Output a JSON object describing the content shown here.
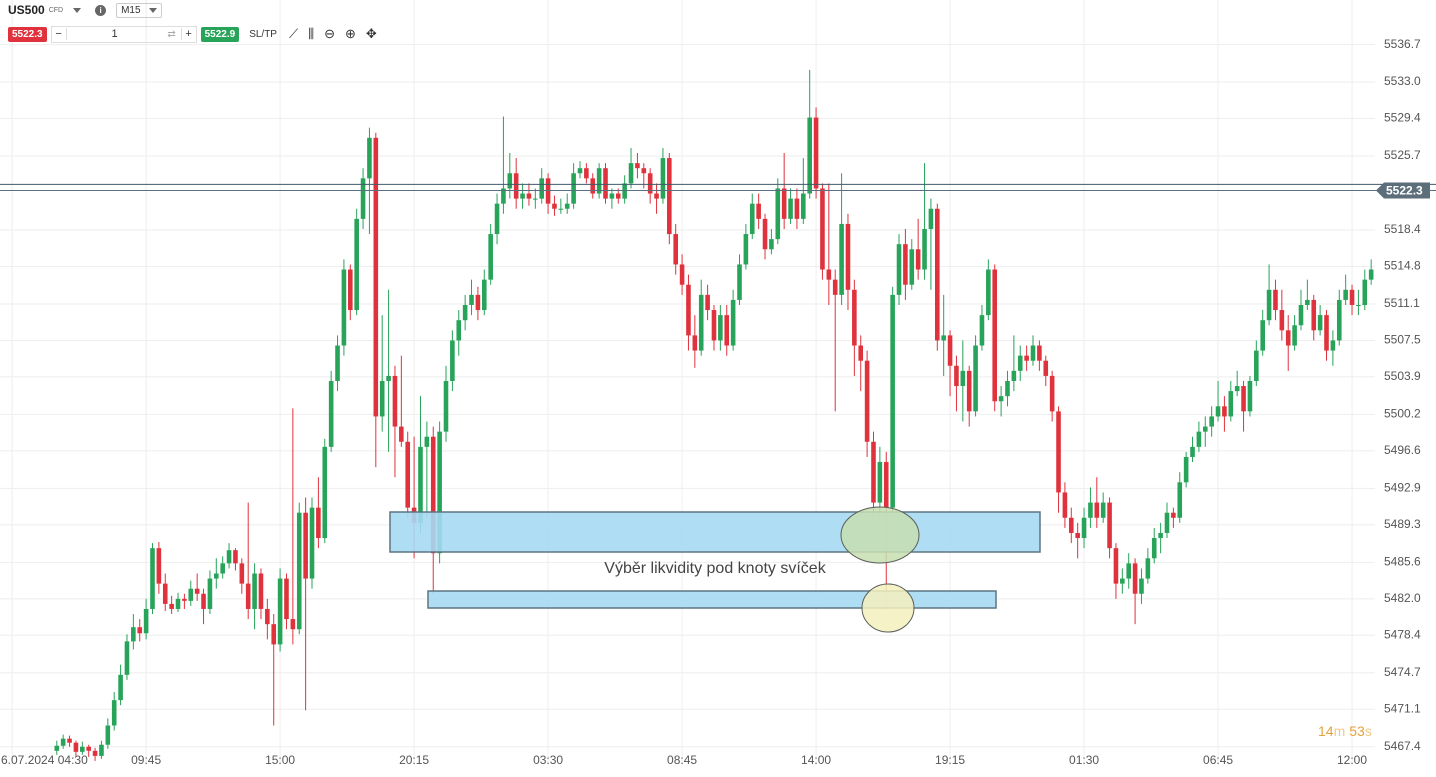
{
  "toolbar": {
    "symbol": "US500",
    "symbol_type": "CFD",
    "timeframe": "M15",
    "bid": 5522.3,
    "quantity": "1",
    "ask": 5522.9,
    "sltp": "SL/TP"
  },
  "countdown": {
    "minutes": "14",
    "minutes_unit": "m",
    "seconds": "53",
    "seconds_unit": "s"
  },
  "chart_data": {
    "type": "candlestick",
    "annotation": "Výběr likvidity pod knoty svíček",
    "up_color": "#27a35a",
    "down_color": "#e0323c",
    "grid": true,
    "price_lines": [
      {
        "name": "ask",
        "value": 5522.9,
        "color": "#3f5a6a"
      },
      {
        "name": "bid",
        "value": 5522.3,
        "color": "#5a6f7d"
      }
    ],
    "xlim": [
      -8.9,
      206.6
    ],
    "xticks": [
      {
        "value": -7,
        "label": "6.07.2024 04:30"
      },
      {
        "value": 14,
        "label": "09:45"
      },
      {
        "value": 35,
        "label": "15:00"
      },
      {
        "value": 56,
        "label": "20:15"
      },
      {
        "value": 77,
        "label": "03:30"
      },
      {
        "value": 98,
        "label": "08:45"
      },
      {
        "value": 119,
        "label": "14:00"
      },
      {
        "value": 140,
        "label": "19:15"
      },
      {
        "value": 161,
        "label": "01:30"
      },
      {
        "value": 182,
        "label": "06:45"
      },
      {
        "value": 203,
        "label": "12:00"
      }
    ],
    "ylim": [
      5465.6,
      5541.1
    ],
    "yticks": [
      5536.7,
      {
        "value": 5533.0,
        "label": "5533.0"
      },
      5529.4,
      5525.7,
      5518.4,
      5514.8,
      5511.1,
      5507.5,
      5503.9,
      5500.2,
      5496.6,
      5492.9,
      5489.3,
      5485.6,
      {
        "value": 5482.0,
        "label": "5482.0"
      },
      5478.4,
      5474.7,
      5471.1,
      5467.4
    ],
    "candles": [
      [
        5467.0,
        5468.0,
        5466.6,
        5467.5
      ],
      [
        5467.5,
        5468.6,
        5467.2,
        5468.2
      ],
      [
        5468.2,
        5468.5,
        5467.4,
        5467.8
      ],
      [
        5467.8,
        5468.0,
        5466.5,
        5466.9
      ],
      [
        5466.9,
        5467.9,
        5466.6,
        5467.4
      ],
      [
        5467.4,
        5467.6,
        5466.4,
        5467.0
      ],
      [
        5467.0,
        5467.3,
        5466.0,
        5466.5
      ],
      [
        5466.5,
        5468.0,
        5466.2,
        5467.6
      ],
      [
        5467.6,
        5470.2,
        5467.2,
        5469.5
      ],
      [
        5469.5,
        5472.8,
        5469.0,
        5472.0
      ],
      [
        5472.0,
        5475.5,
        5471.5,
        5474.5
      ],
      [
        5474.5,
        5478.5,
        5474.0,
        5477.8
      ],
      [
        5477.8,
        5480.5,
        5477.0,
        5479.2
      ],
      [
        5479.2,
        5480.0,
        5477.8,
        5478.6
      ],
      [
        5478.6,
        5482.0,
        5478.0,
        5481.0
      ],
      [
        5481.0,
        5487.5,
        5480.5,
        5487.0
      ],
      [
        5487.0,
        5487.6,
        5482.5,
        5483.5
      ],
      [
        5483.5,
        5484.5,
        5480.8,
        5481.5
      ],
      [
        5481.5,
        5482.3,
        5480.5,
        5481.0
      ],
      [
        5481.0,
        5482.6,
        5480.7,
        5482.0
      ],
      [
        5482.0,
        5482.5,
        5481.0,
        5481.8
      ],
      [
        5481.8,
        5483.8,
        5481.3,
        5483.0
      ],
      [
        5483.0,
        5484.5,
        5481.8,
        5482.5
      ],
      [
        5482.5,
        5483.0,
        5479.5,
        5481.0
      ],
      [
        5481.0,
        5484.8,
        5480.5,
        5484.0
      ],
      [
        5484.0,
        5486.0,
        5483.0,
        5484.5
      ],
      [
        5484.5,
        5486.2,
        5484.0,
        5485.5
      ],
      [
        5485.5,
        5487.5,
        5485.0,
        5486.8
      ],
      [
        5486.8,
        5487.0,
        5484.8,
        5485.5
      ],
      [
        5485.5,
        5486.0,
        5482.5,
        5483.5
      ],
      [
        5483.5,
        5491.5,
        5480.0,
        5481.0
      ],
      [
        5481.0,
        5485.5,
        5479.0,
        5484.5
      ],
      [
        5484.5,
        5485.0,
        5480.0,
        5481.0
      ],
      [
        5481.0,
        5482.0,
        5478.0,
        5479.5
      ],
      [
        5479.5,
        5480.5,
        5469.5,
        5477.5
      ],
      [
        5477.5,
        5485.0,
        5476.8,
        5484.0
      ],
      [
        5484.0,
        5484.5,
        5479.0,
        5480.0
      ],
      [
        5480.0,
        5500.8,
        5477.5,
        5479.0
      ],
      [
        5479.0,
        5491.5,
        5478.5,
        5490.5
      ],
      [
        5490.5,
        5492.0,
        5471.0,
        5484.0
      ],
      [
        5484.0,
        5492.0,
        5483.0,
        5491.0
      ],
      [
        5491.0,
        5494.0,
        5487.0,
        5488.0
      ],
      [
        5488.0,
        5497.8,
        5487.5,
        5497.0
      ],
      [
        5497.0,
        5504.5,
        5496.5,
        5503.5
      ],
      [
        5503.5,
        5508.0,
        5502.5,
        5507.0
      ],
      [
        5507.0,
        5515.5,
        5506.0,
        5514.5
      ],
      [
        5514.5,
        5515.0,
        5509.5,
        5510.5
      ],
      [
        5510.5,
        5520.5,
        5510.0,
        5519.5
      ],
      [
        5519.5,
        5524.5,
        5518.5,
        5523.5
      ],
      [
        5523.5,
        5528.5,
        5518.0,
        5527.5
      ],
      [
        5527.5,
        5528.0,
        5495.0,
        5500.0
      ],
      [
        5500.0,
        5510.0,
        5498.5,
        5503.5
      ],
      [
        5503.5,
        5512.5,
        5496.5,
        5504.0
      ],
      [
        5504.0,
        5505.0,
        5494.0,
        5499.0
      ],
      [
        5499.0,
        5506.0,
        5497.0,
        5497.5
      ],
      [
        5497.5,
        5498.5,
        5490.0,
        5491.0
      ],
      [
        5491.0,
        5498.0,
        5486.0,
        5489.5
      ],
      [
        5489.5,
        5502.0,
        5488.5,
        5497.0
      ],
      [
        5497.0,
        5499.5,
        5490.0,
        5498.0
      ],
      [
        5498.0,
        5499.0,
        5482.5,
        5486.5
      ],
      [
        5486.5,
        5499.5,
        5485.5,
        5498.5
      ],
      [
        5498.5,
        5505.0,
        5497.5,
        5503.5
      ],
      [
        5503.5,
        5508.5,
        5502.5,
        5507.5
      ],
      [
        5507.5,
        5510.5,
        5506.0,
        5509.5
      ],
      [
        5509.5,
        5512.0,
        5508.5,
        5511.0
      ],
      [
        5511.0,
        5513.5,
        5510.0,
        5512.0
      ],
      [
        5512.0,
        5512.8,
        5509.5,
        5510.5
      ],
      [
        5510.5,
        5514.5,
        5510.0,
        5513.5
      ],
      [
        5513.5,
        5519.0,
        5513.0,
        5518.0
      ],
      [
        5518.0,
        5522.0,
        5517.0,
        5521.0
      ],
      [
        5521.0,
        5529.6,
        5520.0,
        5522.5
      ],
      [
        5522.5,
        5526.0,
        5521.5,
        5524.0
      ],
      [
        5524.0,
        5525.5,
        5520.5,
        5521.5
      ],
      [
        5521.5,
        5523.0,
        5520.5,
        5522.0
      ],
      [
        5522.0,
        5523.0,
        5520.8,
        5521.5
      ],
      [
        5521.5,
        5522.5,
        5520.5,
        5521.5
      ],
      [
        5521.5,
        5524.5,
        5521.0,
        5523.5
      ],
      [
        5523.5,
        5524.0,
        5520.0,
        5521.0
      ],
      [
        5521.0,
        5521.8,
        5519.8,
        5520.5
      ],
      [
        5520.5,
        5521.5,
        5520.0,
        5520.5
      ],
      [
        5520.5,
        5522.0,
        5520.0,
        5521.0
      ],
      [
        5521.0,
        5525.0,
        5520.5,
        5524.0
      ],
      [
        5524.0,
        5525.2,
        5523.5,
        5524.5
      ],
      [
        5524.5,
        5525.0,
        5523.0,
        5523.5
      ],
      [
        5523.5,
        5524.0,
        5521.5,
        5522.0
      ],
      [
        5522.0,
        5525.0,
        5521.5,
        5524.5
      ],
      [
        5524.5,
        5525.0,
        5521.0,
        5521.5
      ],
      [
        5521.5,
        5522.5,
        5520.5,
        5522.0
      ],
      [
        5522.0,
        5522.5,
        5521.0,
        5521.5
      ],
      [
        5521.5,
        5523.8,
        5521.0,
        5523.0
      ],
      [
        5523.0,
        5526.5,
        5522.5,
        5525.0
      ],
      [
        5525.0,
        5526.0,
        5523.5,
        5524.5
      ],
      [
        5524.5,
        5525.0,
        5522.5,
        5524.0
      ],
      [
        5524.0,
        5524.5,
        5521.0,
        5522.0
      ],
      [
        5522.0,
        5523.0,
        5520.0,
        5521.5
      ],
      [
        5521.5,
        5526.5,
        5521.0,
        5525.5
      ],
      [
        5525.5,
        5526.0,
        5517.0,
        5518.0
      ],
      [
        5518.0,
        5519.0,
        5514.0,
        5515.0
      ],
      [
        5515.0,
        5516.0,
        5512.0,
        5513.0
      ],
      [
        5513.0,
        5514.0,
        5506.5,
        5508.0
      ],
      [
        5508.0,
        5510.0,
        5504.8,
        5506.5
      ],
      [
        5506.5,
        5513.5,
        5506.0,
        5512.0
      ],
      [
        5512.0,
        5513.0,
        5509.5,
        5510.5
      ],
      [
        5510.5,
        5511.0,
        5506.5,
        5507.5
      ],
      [
        5507.5,
        5511.0,
        5506.5,
        5510.0
      ],
      [
        5510.0,
        5511.0,
        5506.0,
        5507.0
      ],
      [
        5507.0,
        5512.5,
        5506.5,
        5511.5
      ],
      [
        5511.5,
        5516.0,
        5511.0,
        5515.0
      ],
      [
        5515.0,
        5519.0,
        5514.5,
        5518.0
      ],
      [
        5518.0,
        5522.0,
        5517.5,
        5521.0
      ],
      [
        5521.0,
        5522.0,
        5518.5,
        5519.5
      ],
      [
        5519.5,
        5520.0,
        5515.5,
        5516.5
      ],
      [
        5516.5,
        5518.5,
        5516.0,
        5517.5
      ],
      [
        5517.5,
        5523.5,
        5517.0,
        5522.5
      ],
      [
        5522.5,
        5526.0,
        5518.5,
        5519.5
      ],
      [
        5519.5,
        5522.5,
        5519.0,
        5521.5
      ],
      [
        5521.5,
        5522.5,
        5518.5,
        5519.5
      ],
      [
        5519.5,
        5525.5,
        5519.0,
        5522.0
      ],
      [
        5522.0,
        5534.2,
        5521.5,
        5529.5
      ],
      [
        5529.5,
        5530.5,
        5521.5,
        5522.5
      ],
      [
        5522.5,
        5523.0,
        5513.5,
        5514.5
      ],
      [
        5514.5,
        5523.0,
        5511.0,
        5513.5
      ],
      [
        5513.5,
        5514.5,
        5500.5,
        5512.0
      ],
      [
        5512.0,
        5524.0,
        5511.0,
        5519.0
      ],
      [
        5519.0,
        5520.0,
        5510.5,
        5512.5
      ],
      [
        5512.5,
        5513.5,
        5504.0,
        5507.0
      ],
      [
        5507.0,
        5508.0,
        5502.5,
        5505.5
      ],
      [
        5505.5,
        5506.5,
        5496.0,
        5497.5
      ],
      [
        5497.5,
        5498.5,
        5490.0,
        5491.5
      ],
      [
        5491.5,
        5497.0,
        5487.5,
        5495.5
      ],
      [
        5495.5,
        5496.5,
        5481.0,
        5491.0
      ],
      [
        5491.0,
        5512.8,
        5490.5,
        5512.0
      ],
      [
        5512.0,
        5518.0,
        5511.0,
        5517.0
      ],
      [
        5517.0,
        5518.5,
        5511.5,
        5513.0
      ],
      [
        5513.0,
        5517.5,
        5512.5,
        5516.5
      ],
      [
        5516.5,
        5519.5,
        5513.5,
        5514.5
      ],
      [
        5514.5,
        5525.0,
        5513.5,
        5518.5
      ],
      [
        5518.5,
        5521.5,
        5512.5,
        5520.5
      ],
      [
        5520.5,
        5521.0,
        5506.5,
        5507.5
      ],
      [
        5507.5,
        5512.0,
        5504.0,
        5508.0
      ],
      [
        5508.0,
        5508.5,
        5502.0,
        5505.0
      ],
      [
        5505.0,
        5506.0,
        5500.5,
        5503.0
      ],
      [
        5503.0,
        5507.5,
        5499.5,
        5504.5
      ],
      [
        5504.5,
        5505.0,
        5499.0,
        5500.5
      ],
      [
        5500.5,
        5508.0,
        5500.0,
        5507.0
      ],
      [
        5507.0,
        5511.0,
        5506.5,
        5510.0
      ],
      [
        5510.0,
        5515.5,
        5509.5,
        5514.5
      ],
      [
        5514.5,
        5515.0,
        5500.5,
        5501.5
      ],
      [
        5501.5,
        5503.0,
        5500.0,
        5502.0
      ],
      [
        5502.0,
        5504.5,
        5501.0,
        5503.5
      ],
      [
        5503.5,
        5508.0,
        5502.5,
        5504.5
      ],
      [
        5504.5,
        5507.0,
        5503.5,
        5506.0
      ],
      [
        5506.0,
        5507.0,
        5504.5,
        5505.5
      ],
      [
        5505.5,
        5508.0,
        5505.0,
        5507.0
      ],
      [
        5507.0,
        5507.5,
        5504.5,
        5505.5
      ],
      [
        5505.5,
        5506.0,
        5503.0,
        5504.0
      ],
      [
        5504.0,
        5504.5,
        5499.5,
        5500.5
      ],
      [
        5500.5,
        5501.0,
        5490.5,
        5492.5
      ],
      [
        5492.5,
        5493.5,
        5489.0,
        5490.0
      ],
      [
        5490.0,
        5491.0,
        5487.5,
        5488.5
      ],
      [
        5488.5,
        5489.5,
        5486.0,
        5488.0
      ],
      [
        5488.0,
        5491.0,
        5487.0,
        5490.0
      ],
      [
        5490.0,
        5493.0,
        5489.0,
        5491.5
      ],
      [
        5491.5,
        5494.0,
        5489.0,
        5490.0
      ],
      [
        5490.0,
        5492.5,
        5489.5,
        5491.5
      ],
      [
        5491.5,
        5492.0,
        5486.0,
        5487.0
      ],
      [
        5487.0,
        5487.5,
        5482.0,
        5483.5
      ],
      [
        5483.5,
        5485.0,
        5482.5,
        5484.0
      ],
      [
        5484.0,
        5486.5,
        5483.0,
        5485.5
      ],
      [
        5485.5,
        5486.0,
        5479.5,
        5482.5
      ],
      [
        5482.5,
        5485.0,
        5481.5,
        5484.0
      ],
      [
        5484.0,
        5487.0,
        5483.5,
        5486.0
      ],
      [
        5486.0,
        5489.0,
        5485.5,
        5488.0
      ],
      [
        5488.0,
        5489.5,
        5486.5,
        5488.5
      ],
      [
        5488.5,
        5491.5,
        5488.0,
        5490.5
      ],
      [
        5490.5,
        5491.0,
        5489.0,
        5490.0
      ],
      [
        5490.0,
        5494.5,
        5489.5,
        5493.5
      ],
      [
        5493.5,
        5496.5,
        5493.0,
        5496.0
      ],
      [
        5496.0,
        5498.0,
        5495.5,
        5497.0
      ],
      [
        5497.0,
        5499.5,
        5496.5,
        5498.5
      ],
      [
        5498.5,
        5500.0,
        5497.0,
        5499.0
      ],
      [
        5499.0,
        5501.0,
        5498.0,
        5500.0
      ],
      [
        5500.0,
        5503.5,
        5499.5,
        5501.0
      ],
      [
        5501.0,
        5502.0,
        5498.5,
        5500.0
      ],
      [
        5500.0,
        5503.5,
        5499.5,
        5502.5
      ],
      [
        5502.5,
        5504.5,
        5502.0,
        5503.0
      ],
      [
        5503.0,
        5503.5,
        5498.5,
        5500.5
      ],
      [
        5500.5,
        5504.0,
        5500.0,
        5503.5
      ],
      [
        5503.5,
        5507.5,
        5503.0,
        5506.5
      ],
      [
        5506.5,
        5510.5,
        5506.0,
        5509.5
      ],
      [
        5509.5,
        5515.0,
        5509.0,
        5512.5
      ],
      [
        5512.5,
        5513.5,
        5509.5,
        5510.5
      ],
      [
        5510.5,
        5512.5,
        5507.5,
        5508.5
      ],
      [
        5508.5,
        5510.0,
        5504.5,
        5507.0
      ],
      [
        5507.0,
        5510.0,
        5506.5,
        5509.0
      ],
      [
        5509.0,
        5512.5,
        5508.5,
        5511.0
      ],
      [
        5511.0,
        5513.5,
        5510.5,
        5511.5
      ],
      [
        5511.5,
        5512.0,
        5507.5,
        5508.5
      ],
      [
        5508.5,
        5511.0,
        5508.0,
        5510.0
      ],
      [
        5510.0,
        5510.5,
        5505.5,
        5506.5
      ],
      [
        5506.5,
        5508.5,
        5505.0,
        5507.5
      ],
      [
        5507.5,
        5512.5,
        5507.0,
        5511.5
      ],
      [
        5511.5,
        5514.0,
        5511.0,
        5512.5
      ],
      [
        5512.5,
        5513.0,
        5510.0,
        5511.0
      ],
      [
        5511.0,
        5512.5,
        5510.0,
        5511.0
      ],
      [
        5511.0,
        5514.5,
        5510.5,
        5513.5
      ],
      [
        5513.5,
        5515.5,
        5513.0,
        5514.5
      ]
    ]
  }
}
